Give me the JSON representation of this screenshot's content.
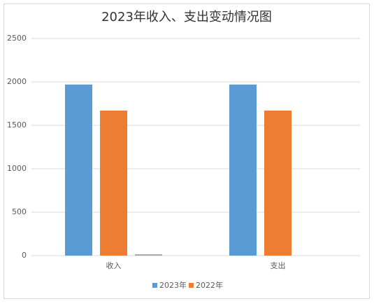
{
  "chart_data": {
    "type": "bar",
    "title": "2023年收入、支出变动情况图",
    "categories": [
      "收入",
      "支出"
    ],
    "series": [
      {
        "name": "2023年",
        "color": "#5b9bd5",
        "values": [
          1970,
          1970
        ]
      },
      {
        "name": "2022年",
        "color": "#ed7d31",
        "values": [
          1670,
          1670
        ]
      },
      {
        "color": "#a5a5a5",
        "values": [
          15,
          null
        ]
      }
    ],
    "ylim": [
      0,
      2500
    ],
    "yticks": [
      0,
      500,
      1000,
      1500,
      2000,
      2500
    ],
    "grid": true,
    "legend": "bottom"
  }
}
